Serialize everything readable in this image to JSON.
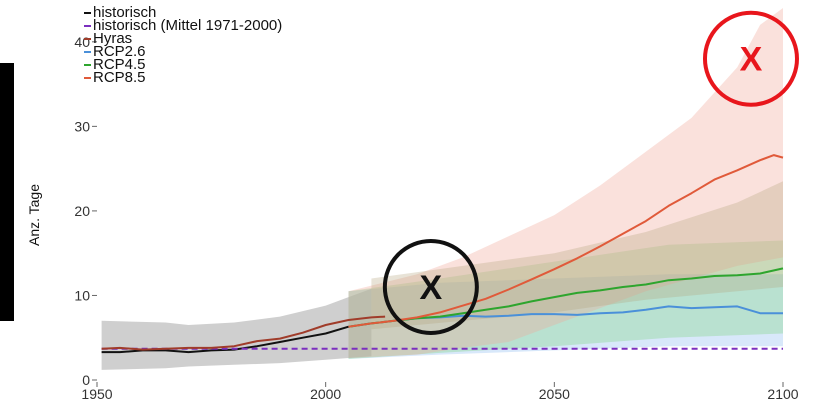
{
  "chart_data": {
    "type": "line",
    "title": "",
    "xlabel": "",
    "ylabel": "Anz. Tage",
    "xlim": [
      1950,
      2100
    ],
    "ylim": [
      0,
      44
    ],
    "x_ticks": [
      "1950",
      "2000",
      "2050",
      "2100"
    ],
    "y_ticks": [
      "0",
      "10",
      "20",
      "30",
      "40"
    ],
    "grid": false,
    "legend_position": "top-left",
    "series": [
      {
        "name": "historisch",
        "color": "#111111",
        "style": "solid",
        "x": [
          1951,
          1955,
          1960,
          1965,
          1970,
          1975,
          1980,
          1985,
          1990,
          1995,
          2000,
          2005
        ],
        "y": [
          3.3,
          3.3,
          3.5,
          3.5,
          3.3,
          3.5,
          3.6,
          4.0,
          4.5,
          5.0,
          5.5,
          6.3
        ]
      },
      {
        "name": "historisch (Mittel 1971-2000)",
        "color": "#7b2fbf",
        "style": "dashed",
        "x": [
          1951,
          2100
        ],
        "y": [
          3.7,
          3.7
        ]
      },
      {
        "name": "Hyras",
        "color": "#a03c2a",
        "style": "solid",
        "x": [
          1951,
          1955,
          1960,
          1965,
          1970,
          1975,
          1980,
          1985,
          1990,
          1995,
          2000,
          2005,
          2010,
          2013
        ],
        "y": [
          3.7,
          3.8,
          3.6,
          3.7,
          3.8,
          3.8,
          4.0,
          4.6,
          4.9,
          5.6,
          6.5,
          7.1,
          7.4,
          7.5
        ]
      },
      {
        "name": "RCP2.6",
        "color": "#4a90d9",
        "style": "solid",
        "x": [
          2005,
          2010,
          2015,
          2020,
          2025,
          2030,
          2035,
          2040,
          2045,
          2050,
          2055,
          2060,
          2065,
          2070,
          2075,
          2080,
          2085,
          2090,
          2095,
          2100
        ],
        "y": [
          6.3,
          6.7,
          7.0,
          7.3,
          7.4,
          7.6,
          7.5,
          7.6,
          7.8,
          7.8,
          7.7,
          7.9,
          8.0,
          8.3,
          8.7,
          8.5,
          8.6,
          8.7,
          7.9,
          7.9
        ]
      },
      {
        "name": "RCP4.5",
        "color": "#2ea52e",
        "style": "solid",
        "x": [
          2005,
          2010,
          2015,
          2020,
          2025,
          2030,
          2035,
          2040,
          2045,
          2050,
          2055,
          2060,
          2065,
          2070,
          2075,
          2080,
          2085,
          2090,
          2095,
          2100
        ],
        "y": [
          6.3,
          6.7,
          7.0,
          7.3,
          7.5,
          7.9,
          8.3,
          8.7,
          9.3,
          9.8,
          10.3,
          10.6,
          11.0,
          11.3,
          11.8,
          12.0,
          12.3,
          12.4,
          12.6,
          13.2
        ]
      },
      {
        "name": "RCP8.5",
        "color": "#e05a3a",
        "style": "solid",
        "x": [
          2005,
          2010,
          2015,
          2020,
          2025,
          2030,
          2035,
          2040,
          2045,
          2050,
          2055,
          2060,
          2065,
          2070,
          2075,
          2080,
          2085,
          2090,
          2095,
          2098,
          2100
        ],
        "y": [
          6.3,
          6.7,
          7.0,
          7.4,
          8.0,
          8.8,
          9.6,
          10.7,
          11.9,
          13.1,
          14.4,
          15.8,
          17.3,
          18.8,
          20.6,
          22.1,
          23.7,
          24.8,
          26.0,
          26.6,
          26.3
        ]
      }
    ],
    "bands": [
      {
        "series": "historisch",
        "color": "#8c8c8c",
        "opacity": 0.42,
        "x": [
          1951,
          1965,
          1970,
          1980,
          1990,
          2000,
          2005,
          2010
        ],
        "lower": [
          1.2,
          1.4,
          1.6,
          1.8,
          2.0,
          2.4,
          2.6,
          2.8
        ],
        "upper": [
          7.0,
          6.8,
          6.5,
          6.8,
          7.5,
          8.8,
          9.8,
          10.8
        ]
      },
      {
        "series": "RCP2.6",
        "color": "#7fb2ee",
        "opacity": 0.3,
        "x": [
          2005,
          2025,
          2050,
          2075,
          2100
        ],
        "lower": [
          2.5,
          3.0,
          3.5,
          4.0,
          4.0
        ],
        "upper": [
          10.5,
          11.5,
          12.0,
          12.5,
          12.5
        ]
      },
      {
        "series": "RCP4.5",
        "color": "#6fd16f",
        "opacity": 0.3,
        "x": [
          2005,
          2025,
          2050,
          2075,
          2100
        ],
        "lower": [
          2.5,
          3.2,
          4.0,
          5.0,
          5.5
        ],
        "upper": [
          10.5,
          12.0,
          14.0,
          16.0,
          16.5
        ]
      },
      {
        "series": "RCP8.5",
        "color": "#f2a89a",
        "opacity": 0.35,
        "x": [
          2005,
          2020,
          2030,
          2040,
          2050,
          2060,
          2070,
          2080,
          2090,
          2095,
          2100
        ],
        "lower": [
          2.6,
          3.0,
          3.8,
          4.5,
          6.5,
          8.5,
          10.5,
          12.0,
          13.5,
          14.0,
          14.5
        ],
        "upper": [
          10.5,
          12.5,
          14.5,
          17.0,
          19.5,
          23.0,
          27.0,
          31.0,
          37.0,
          42.0,
          44.0
        ]
      },
      {
        "series": "overlap",
        "color": "#b4a27a",
        "opacity": 0.3,
        "x": [
          2010,
          2030,
          2050,
          2070,
          2090,
          2100
        ],
        "lower": [
          6.0,
          7.0,
          8.0,
          9.5,
          10.5,
          11.0
        ],
        "upper": [
          12.0,
          13.5,
          15.0,
          17.5,
          21.0,
          23.5
        ]
      }
    ],
    "markers": [
      {
        "x": 2023,
        "y": 11.0,
        "label": "X",
        "color": "#111111"
      },
      {
        "x": 2093,
        "y": 38.0,
        "label": "X",
        "color": "#e8161c"
      }
    ]
  }
}
